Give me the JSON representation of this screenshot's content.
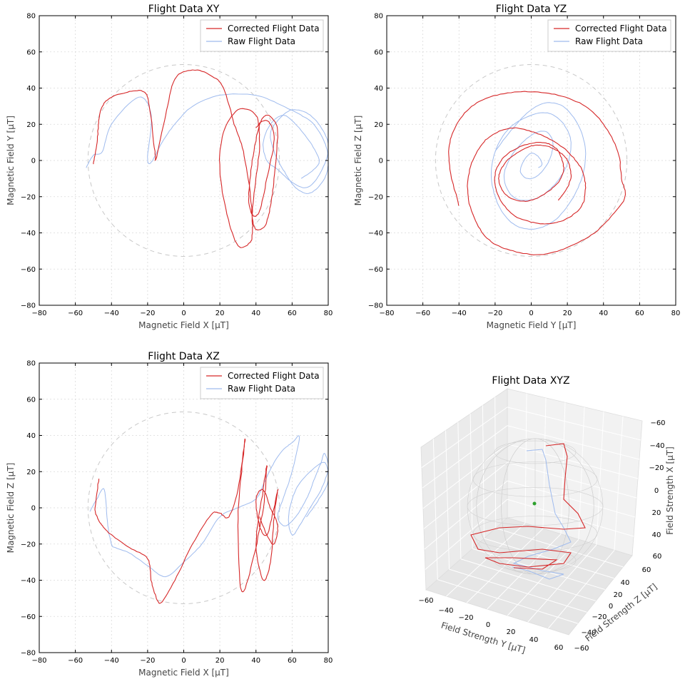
{
  "chart_data": [
    {
      "type": "line",
      "title": "Flight Data XY",
      "xlabel": "Magnetic Field X [μT]",
      "ylabel": "Magnetic Field Y [μT]",
      "xlim": [
        -80,
        80
      ],
      "ylim": [
        -80,
        80
      ],
      "xticks": [
        -80,
        -60,
        -40,
        -20,
        0,
        20,
        40,
        60,
        80
      ],
      "yticks": [
        -80,
        -60,
        -40,
        -20,
        0,
        20,
        40,
        60,
        80
      ],
      "grid": true,
      "legend": "top-right",
      "reference_circle": {
        "cx": 0,
        "cy": 0,
        "r": 53
      },
      "series": [
        {
          "name": "Corrected Flight Data",
          "color": "#d62728",
          "x": [
            -50,
            -48,
            -47,
            -45,
            -40,
            -30,
            -22,
            -19,
            -16,
            -15,
            -10,
            -5,
            5,
            15,
            22,
            28,
            33,
            37,
            38,
            36,
            30,
            24,
            20,
            22,
            30,
            40,
            42,
            40,
            38,
            40,
            45,
            48,
            50,
            52,
            50,
            46,
            42,
            38,
            36,
            38,
            42,
            46,
            50,
            48,
            44,
            40
          ],
          "y": [
            -2,
            10,
            22,
            30,
            35,
            38,
            38,
            30,
            5,
            2,
            25,
            45,
            50,
            47,
            40,
            20,
            5,
            -20,
            -40,
            -46,
            -47,
            -30,
            -5,
            15,
            28,
            25,
            10,
            -10,
            -30,
            -38,
            -36,
            -25,
            -10,
            15,
            22,
            25,
            20,
            0,
            -20,
            -30,
            -28,
            -10,
            10,
            20,
            22,
            18
          ]
        },
        {
          "name": "Raw Flight Data",
          "color": "#9fbbee",
          "x": [
            -54,
            -50,
            -45,
            -40,
            -25,
            -18,
            -20,
            -18,
            -12,
            -5,
            5,
            20,
            40,
            55,
            65,
            72,
            78,
            80,
            78,
            70,
            62,
            55,
            50,
            48,
            52,
            60,
            70,
            78,
            80,
            75,
            68,
            60,
            52,
            46,
            44,
            48,
            55,
            62,
            70,
            75,
            72,
            65
          ],
          "y": [
            -4,
            3,
            5,
            20,
            35,
            25,
            2,
            -1,
            10,
            20,
            30,
            36,
            36,
            30,
            25,
            20,
            10,
            0,
            -10,
            -18,
            -15,
            -5,
            5,
            15,
            22,
            28,
            25,
            15,
            5,
            -8,
            -15,
            -12,
            -5,
            0,
            10,
            20,
            25,
            20,
            10,
            0,
            -5,
            -10
          ]
        }
      ]
    },
    {
      "type": "line",
      "title": "Flight Data YZ",
      "xlabel": "Magnetic Field Y [μT]",
      "ylabel": "Magnetic Field Z [μT]",
      "xlim": [
        -80,
        80
      ],
      "ylim": [
        -80,
        80
      ],
      "xticks": [
        -80,
        -60,
        -40,
        -20,
        0,
        20,
        40,
        60,
        80
      ],
      "yticks": [
        -80,
        -60,
        -40,
        -20,
        0,
        20,
        40,
        60,
        80
      ],
      "grid": true,
      "legend": "top-right",
      "reference_circle": {
        "cx": 0,
        "cy": 0,
        "r": 53
      },
      "series": [
        {
          "name": "Corrected Flight Data",
          "color": "#d62728",
          "x": [
            -40,
            -45,
            -45,
            -40,
            -30,
            -15,
            0,
            15,
            30,
            40,
            48,
            50,
            52,
            45,
            35,
            20,
            5,
            -10,
            -22,
            -30,
            -35,
            -34,
            -28,
            -20,
            -10,
            0,
            10,
            20,
            28,
            30,
            28,
            20,
            10,
            0,
            -10,
            -18,
            -20,
            -15,
            -5,
            5,
            12,
            16,
            18,
            15,
            8,
            0,
            -8,
            -15,
            -18,
            -15,
            -8,
            0,
            8,
            15,
            20,
            22,
            20,
            15
          ],
          "y": [
            -25,
            -5,
            10,
            22,
            32,
            37,
            38,
            36,
            30,
            20,
            5,
            -10,
            -20,
            -30,
            -40,
            -48,
            -52,
            -50,
            -45,
            -35,
            -20,
            -5,
            8,
            15,
            18,
            16,
            12,
            5,
            -5,
            -15,
            -25,
            -32,
            -35,
            -34,
            -30,
            -20,
            -8,
            2,
            8,
            10,
            8,
            3,
            -5,
            -12,
            -18,
            -22,
            -22,
            -18,
            -10,
            -2,
            4,
            8,
            8,
            5,
            0,
            -8,
            -15,
            -22
          ]
        },
        {
          "name": "Raw Flight Data",
          "color": "#9fbbee",
          "x": [
            -20,
            -10,
            0,
            10,
            20,
            28,
            30,
            26,
            18,
            10,
            0,
            -10,
            -18,
            -22,
            -20,
            -12,
            0,
            10,
            18,
            22,
            20,
            14,
            5,
            -5,
            -12,
            -15,
            -10,
            0,
            8,
            12,
            10,
            4,
            -2,
            -6,
            -4,
            0,
            4,
            6,
            4
          ],
          "y": [
            5,
            18,
            28,
            32,
            28,
            15,
            0,
            -15,
            -28,
            -35,
            -38,
            -35,
            -25,
            -10,
            5,
            18,
            25,
            26,
            20,
            10,
            -2,
            -12,
            -20,
            -22,
            -18,
            -8,
            4,
            14,
            16,
            10,
            0,
            -8,
            -10,
            -6,
            0,
            4,
            2,
            -2,
            -4
          ]
        }
      ]
    },
    {
      "type": "line",
      "title": "Flight Data XZ",
      "xlabel": "Magnetic Field X [μT]",
      "ylabel": "Magnetic Field Z [μT]",
      "xlim": [
        -80,
        80
      ],
      "ylim": [
        -80,
        80
      ],
      "xticks": [
        -80,
        -60,
        -40,
        -20,
        0,
        20,
        40,
        60,
        80
      ],
      "yticks": [
        -80,
        -60,
        -40,
        -20,
        0,
        20,
        40,
        60,
        80
      ],
      "grid": true,
      "legend": "top-right",
      "reference_circle": {
        "cx": 0,
        "cy": 0,
        "r": 53
      },
      "series": [
        {
          "name": "Corrected Flight Data",
          "color": "#d62728",
          "x": [
            -47,
            -49,
            -48,
            -45,
            -40,
            -30,
            -20,
            -18,
            -15,
            -12,
            -5,
            5,
            15,
            20,
            25,
            30,
            34,
            32,
            30,
            32,
            38,
            44,
            46,
            44,
            40,
            44,
            48,
            50,
            52,
            50,
            46,
            42,
            40,
            44,
            48,
            52,
            50,
            46,
            42
          ],
          "y": [
            16,
            0,
            -5,
            -10,
            -15,
            -22,
            -28,
            -40,
            -50,
            -52,
            -40,
            -20,
            -4,
            -3,
            -5,
            10,
            38,
            20,
            -10,
            -46,
            -30,
            0,
            23,
            10,
            -20,
            -40,
            -30,
            -5,
            10,
            0,
            -15,
            -10,
            5,
            10,
            0,
            -10,
            -20,
            -15,
            -5
          ]
        },
        {
          "name": "Raw Flight Data",
          "color": "#9fbbee",
          "x": [
            -52,
            -48,
            -44,
            -42,
            -40,
            -38,
            -30,
            -20,
            -10,
            0,
            10,
            20,
            30,
            40,
            45,
            50,
            55,
            60,
            64,
            60,
            55,
            52,
            56,
            62,
            68,
            72,
            76,
            78,
            80,
            76,
            70,
            64,
            60,
            58,
            62,
            70,
            78,
            80,
            75,
            68
          ],
          "y": [
            -2,
            5,
            10,
            -10,
            -20,
            -22,
            -25,
            -32,
            -38,
            -30,
            -20,
            -5,
            0,
            5,
            15,
            25,
            32,
            36,
            39,
            20,
            5,
            -5,
            -10,
            -5,
            5,
            15,
            25,
            30,
            22,
            10,
            0,
            -10,
            -15,
            -5,
            10,
            20,
            25,
            15,
            5,
            -5
          ]
        }
      ]
    },
    {
      "type": "line3d",
      "title": "Flight Data XYZ",
      "xlabel": "Field Strength Y [μT]",
      "ylabel": "Field Strength Z [μT]",
      "zlabel": "Field Strength X [μT]",
      "y_ticks": [
        -60,
        -40,
        -20,
        0,
        20,
        40,
        60
      ],
      "z_ticks": [
        -60,
        -40,
        -20,
        0,
        20,
        40,
        60
      ],
      "x_ticks": [
        -60,
        -40,
        -20,
        0,
        20,
        40,
        60
      ],
      "grid": true,
      "marker": {
        "color": "#2ca02c",
        "x": 0,
        "y": 0,
        "z": 0
      },
      "series": [
        {
          "name": "Corrected Flight Data",
          "color": "#d62728"
        },
        {
          "name": "Raw Flight Data",
          "color": "#9fbbee"
        }
      ]
    }
  ]
}
